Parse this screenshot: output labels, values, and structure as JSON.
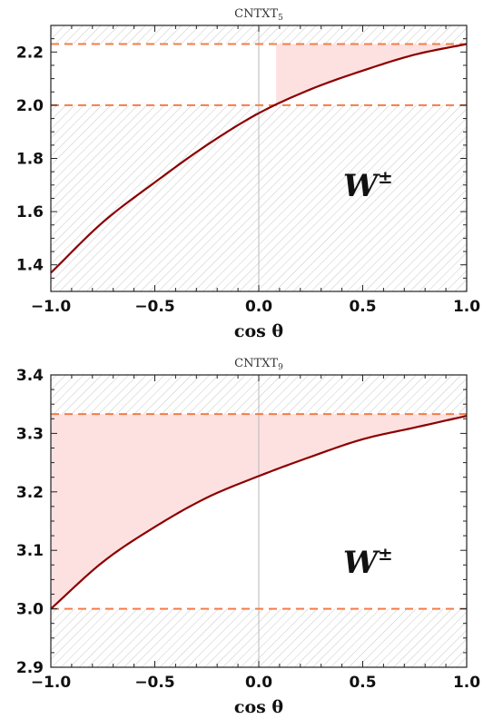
{
  "chart_data": [
    {
      "type": "line",
      "title": "CNTXT",
      "title_subscript": "5",
      "xlabel": "cos θ",
      "ylabel": "",
      "xlim": [
        -1.0,
        1.0
      ],
      "ylim": [
        1.3,
        2.3
      ],
      "xticks": [
        -1.0,
        -0.5,
        0.0,
        0.5,
        1.0
      ],
      "xtick_labels": [
        "−1.0",
        "−0.5",
        "0.0",
        "0.5",
        "1.0"
      ],
      "yticks": [
        1.4,
        1.6,
        1.8,
        2.0,
        2.2
      ],
      "ytick_labels": [
        "1.4",
        "1.6",
        "1.8",
        "2.0",
        "2.2"
      ],
      "series": [
        {
          "x": [
            -1.0,
            -0.75,
            -0.5,
            -0.25,
            0.0,
            0.25,
            0.5,
            0.75,
            1.0
          ],
          "y": [
            1.37,
            1.56,
            1.71,
            1.85,
            1.97,
            2.06,
            2.13,
            2.19,
            2.23
          ],
          "color": "#8b0000"
        }
      ],
      "reference_lines": [
        2.0,
        2.23
      ],
      "allowed_band": [
        2.0,
        2.23
      ],
      "annotation": "W",
      "annotation_superscript": "±",
      "annotation_x": 0.58,
      "annotation_y": 1.7,
      "grid": false,
      "colors": {
        "curve": "#8b0000",
        "dashed": "#f47c48",
        "band": "#fde0e0",
        "hatch": "#c8c8c8"
      }
    },
    {
      "type": "line",
      "title": "CNTXT",
      "title_subscript": "9",
      "xlabel": "cos θ",
      "ylabel": "",
      "xlim": [
        -1.0,
        1.0
      ],
      "ylim": [
        2.9,
        3.4
      ],
      "xticks": [
        -1.0,
        -0.5,
        0.0,
        0.5,
        1.0
      ],
      "xtick_labels": [
        "−1.0",
        "−0.5",
        "0.0",
        "0.5",
        "1.0"
      ],
      "yticks": [
        2.9,
        3.0,
        3.1,
        3.2,
        3.3,
        3.4
      ],
      "ytick_labels": [
        "2.9",
        "3.0",
        "3.1",
        "3.2",
        "3.3",
        "3.4"
      ],
      "series": [
        {
          "x": [
            -1.0,
            -0.75,
            -0.5,
            -0.25,
            0.0,
            0.25,
            0.5,
            0.75,
            1.0
          ],
          "y": [
            3.0,
            3.08,
            3.14,
            3.19,
            3.227,
            3.26,
            3.29,
            3.31,
            3.33
          ],
          "color": "#8b0000"
        }
      ],
      "reference_lines": [
        3.0,
        3.333
      ],
      "allowed_band": [
        3.0,
        3.333
      ],
      "annotation": "W",
      "annotation_superscript": "±",
      "annotation_x": 0.58,
      "annotation_y": 3.08,
      "grid": false,
      "colors": {
        "curve": "#8b0000",
        "dashed": "#f47c48",
        "band": "#fde0e0",
        "hatch": "#c8c8c8"
      }
    }
  ]
}
